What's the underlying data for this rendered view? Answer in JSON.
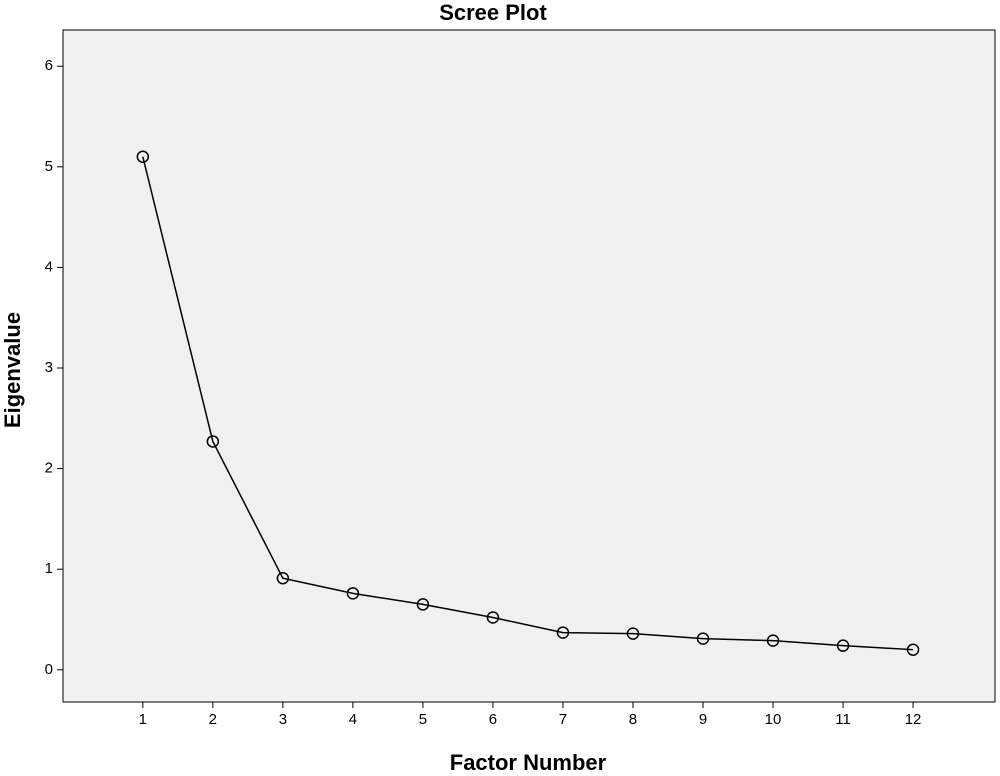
{
  "chart_data": {
    "type": "line",
    "title": "Scree Plot",
    "xlabel": "Factor Number",
    "ylabel": "Eigenvalue",
    "x": [
      1,
      2,
      3,
      4,
      5,
      6,
      7,
      8,
      9,
      10,
      11,
      12
    ],
    "series": [
      {
        "name": null,
        "color": "#000000",
        "values": [
          5.1,
          2.27,
          0.91,
          0.76,
          0.65,
          0.52,
          0.37,
          0.36,
          0.31,
          0.29,
          0.24,
          0.2
        ]
      }
    ],
    "xlim": [
      -0.14,
      13.17
    ],
    "xticks": [
      1,
      2,
      3,
      4,
      5,
      6,
      7,
      8,
      9,
      10,
      11,
      12
    ],
    "ylim": [
      -0.32,
      6.36
    ],
    "yticks": [
      0,
      1,
      2,
      3,
      4,
      5,
      6
    ],
    "grid": false,
    "marker": "open-circle"
  }
}
